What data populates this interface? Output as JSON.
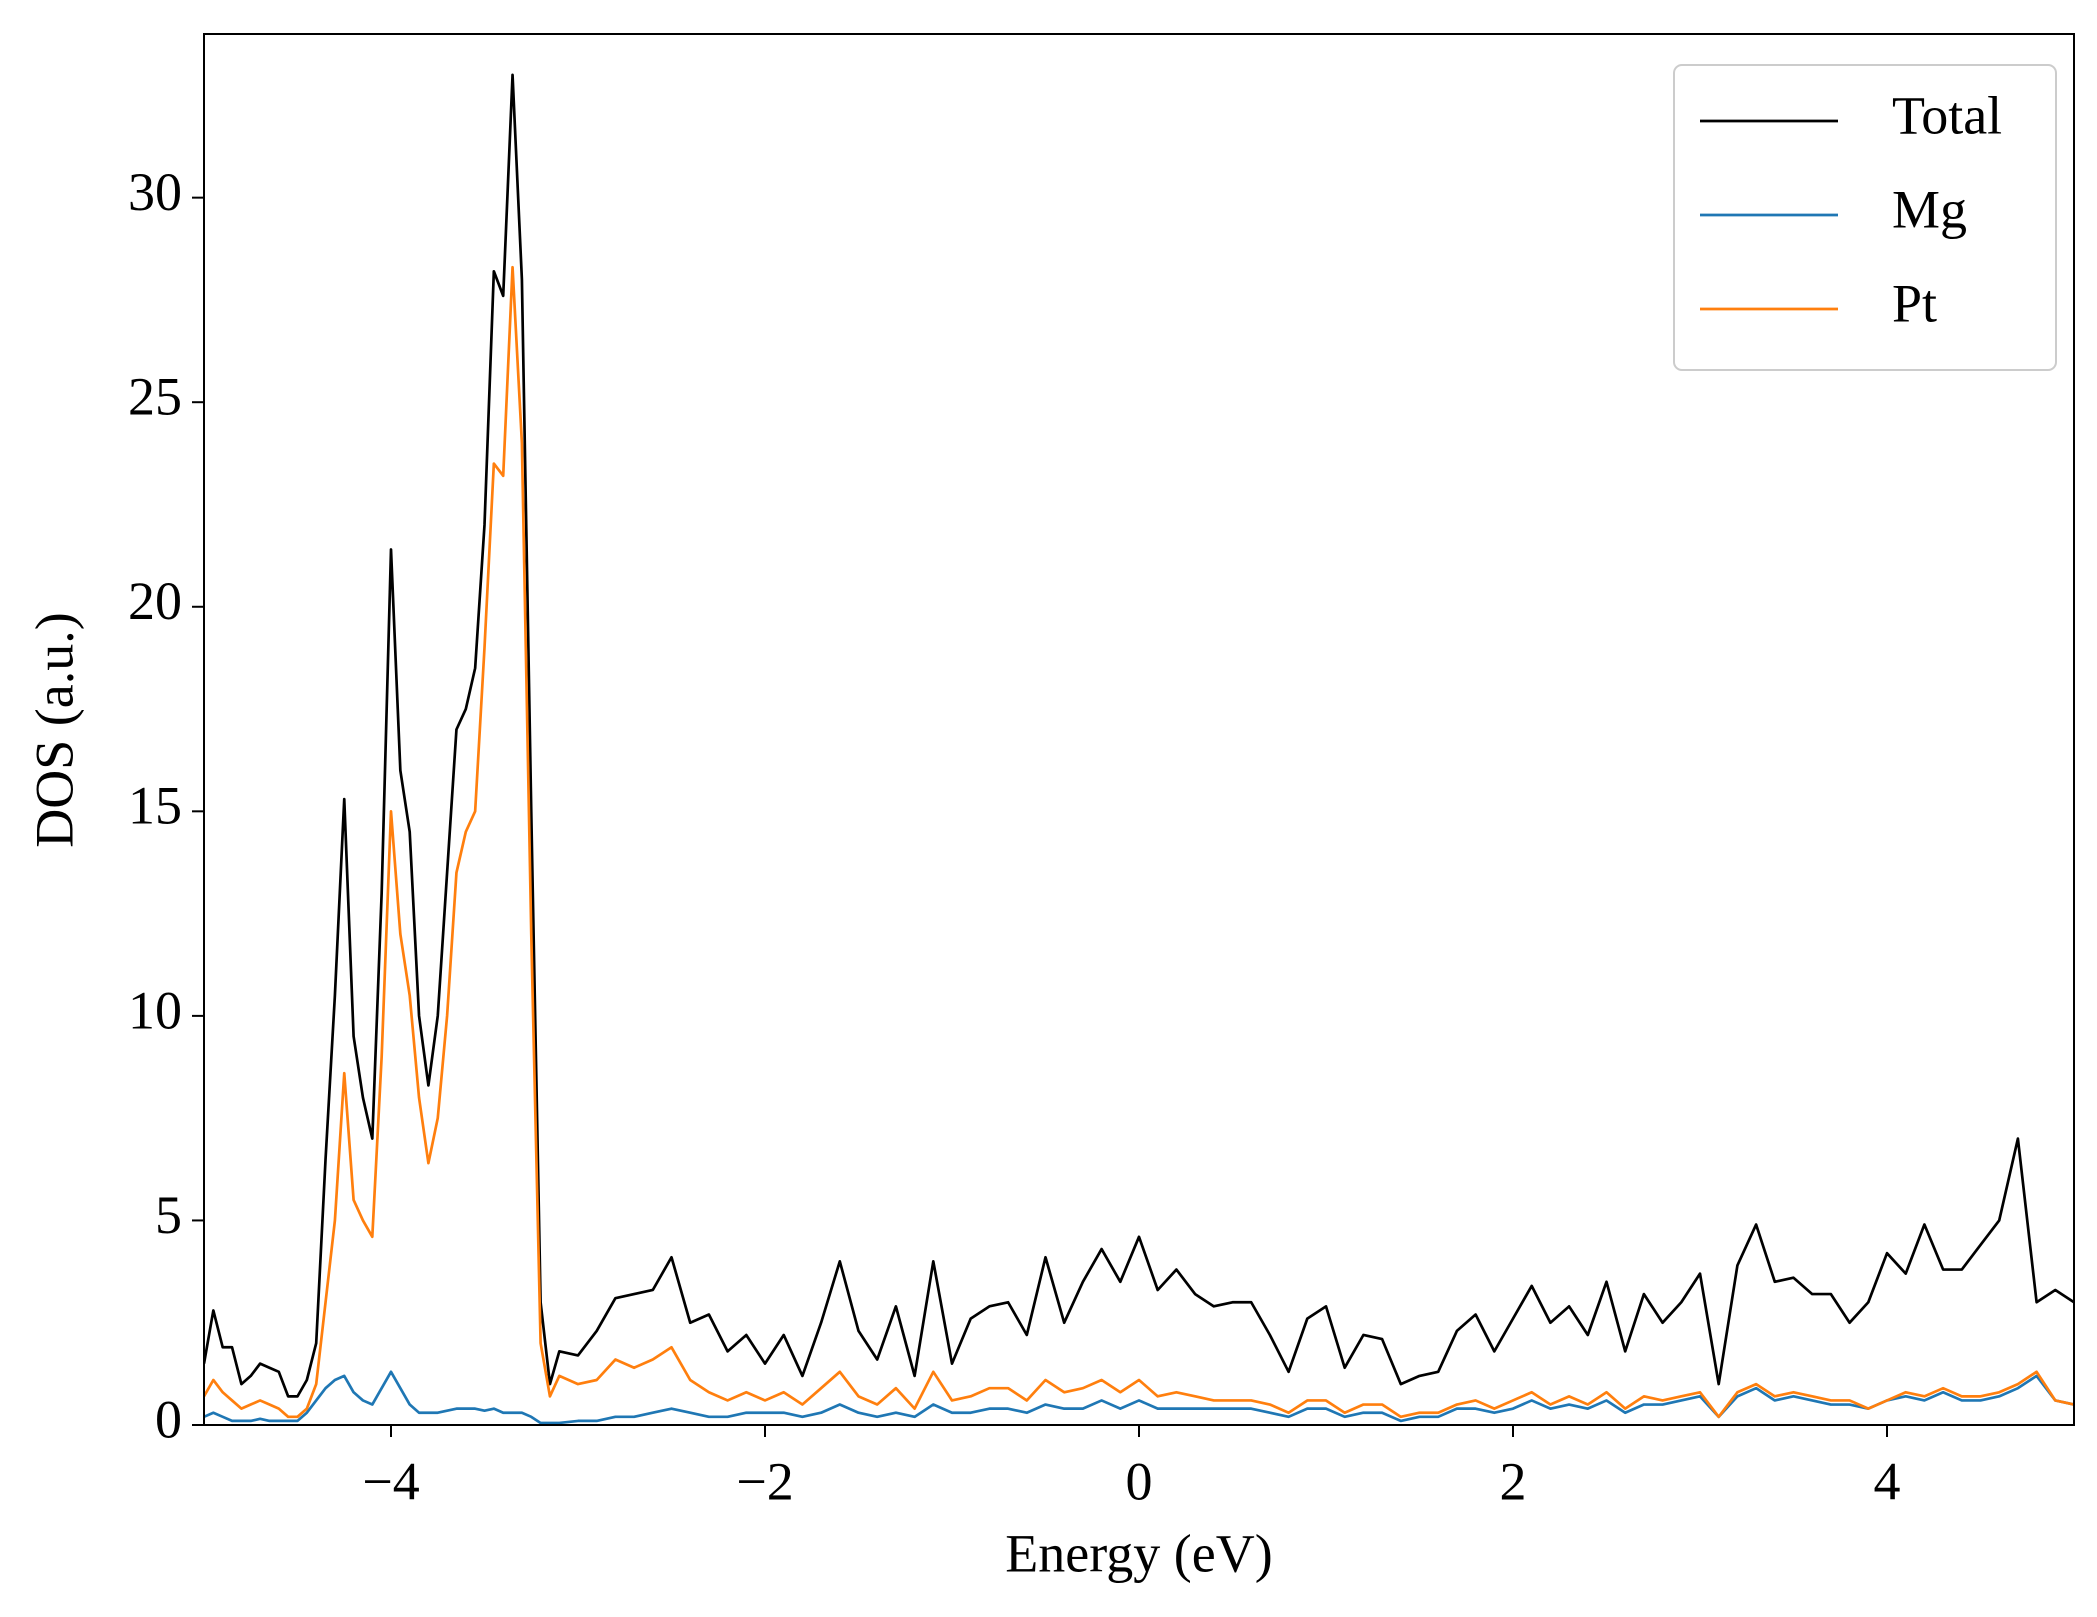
{
  "chart_data": {
    "type": "line",
    "xlabel": "Energy (eV)",
    "ylabel": "DOS (a.u.)",
    "x": [
      -5,
      -4.95,
      -4.9,
      -4.85,
      -4.8,
      -4.75,
      -4.7,
      -4.65,
      -4.6,
      -4.55,
      -4.5,
      -4.45,
      -4.4,
      -4.35,
      -4.3,
      -4.25,
      -4.2,
      -4.15,
      -4.1,
      -4.05,
      -4,
      -3.95,
      -3.9,
      -3.85,
      -3.8,
      -3.75,
      -3.7,
      -3.65,
      -3.6,
      -3.55,
      -3.5,
      -3.45,
      -3.4,
      -3.35,
      -3.3,
      -3.25,
      -3.2,
      -3.15,
      -3.1,
      -3,
      -2.9,
      -2.8,
      -2.7,
      -2.6,
      -2.5,
      -2.4,
      -2.3,
      -2.2,
      -2.1,
      -2,
      -1.9,
      -1.8,
      -1.7,
      -1.6,
      -1.5,
      -1.4,
      -1.3,
      -1.2,
      -1.1,
      -1,
      -0.9,
      -0.8,
      -0.7,
      -0.6,
      -0.5,
      -0.4,
      -0.3,
      -0.2,
      -0.1,
      0,
      0.1,
      0.2,
      0.3,
      0.4,
      0.5,
      0.6,
      0.7,
      0.8,
      0.9,
      1,
      1.1,
      1.2,
      1.3,
      1.4,
      1.5,
      1.6,
      1.7,
      1.8,
      1.9,
      2,
      2.1,
      2.2,
      2.3,
      2.4,
      2.5,
      2.6,
      2.7,
      2.8,
      2.9,
      3,
      3.1,
      3.2,
      3.3,
      3.4,
      3.5,
      3.6,
      3.7,
      3.8,
      3.9,
      4,
      4.1,
      4.2,
      4.3,
      4.4,
      4.5,
      4.6,
      4.7,
      4.8,
      4.9,
      5
    ],
    "series": [
      {
        "name": "Total",
        "color": "#000000",
        "values": [
          1.5,
          2.8,
          1.9,
          1.9,
          1.0,
          1.2,
          1.5,
          1.4,
          1.3,
          0.7,
          0.7,
          1.1,
          2.0,
          6.5,
          10.5,
          15.3,
          9.5,
          8.0,
          7.0,
          13.0,
          21.4,
          16.0,
          14.5,
          10.0,
          8.3,
          10.0,
          13.5,
          17.0,
          17.5,
          18.5,
          22.0,
          28.2,
          27.6,
          33.0,
          28.0,
          15.0,
          3.0,
          1.0,
          1.8,
          1.7,
          2.3,
          3.1,
          3.2,
          3.3,
          4.1,
          2.5,
          2.7,
          1.8,
          2.2,
          1.5,
          2.2,
          1.2,
          2.5,
          4.0,
          2.3,
          1.6,
          2.9,
          1.2,
          4.0,
          1.5,
          2.6,
          2.9,
          3.0,
          2.2,
          4.1,
          2.5,
          3.5,
          4.3,
          3.5,
          4.6,
          3.3,
          3.8,
          3.2,
          2.9,
          3.0,
          3.0,
          2.2,
          1.3,
          2.6,
          2.9,
          1.4,
          2.2,
          2.1,
          1.0,
          1.2,
          1.3,
          2.3,
          2.7,
          1.8,
          2.6,
          3.4,
          2.5,
          2.9,
          2.2,
          3.5,
          1.8,
          3.2,
          2.5,
          3.0,
          3.7,
          1.0,
          3.9,
          4.9,
          3.5,
          3.6,
          3.2,
          3.2,
          2.5,
          3.0,
          4.2,
          3.7,
          4.9,
          3.8,
          3.8,
          4.4,
          5.0,
          7.0,
          3.0,
          3.3,
          3.0
        ]
      },
      {
        "name": "Mg",
        "color": "#1f77b4",
        "values": [
          0.2,
          0.3,
          0.2,
          0.1,
          0.1,
          0.1,
          0.15,
          0.1,
          0.1,
          0.1,
          0.1,
          0.3,
          0.6,
          0.9,
          1.1,
          1.2,
          0.8,
          0.6,
          0.5,
          0.9,
          1.3,
          0.9,
          0.5,
          0.3,
          0.3,
          0.3,
          0.35,
          0.4,
          0.4,
          0.4,
          0.35,
          0.4,
          0.3,
          0.3,
          0.3,
          0.2,
          0.05,
          0.05,
          0.05,
          0.1,
          0.1,
          0.2,
          0.2,
          0.3,
          0.4,
          0.3,
          0.2,
          0.2,
          0.3,
          0.3,
          0.3,
          0.2,
          0.3,
          0.5,
          0.3,
          0.2,
          0.3,
          0.2,
          0.5,
          0.3,
          0.3,
          0.4,
          0.4,
          0.3,
          0.5,
          0.4,
          0.4,
          0.6,
          0.4,
          0.6,
          0.4,
          0.4,
          0.4,
          0.4,
          0.4,
          0.4,
          0.3,
          0.2,
          0.4,
          0.4,
          0.2,
          0.3,
          0.3,
          0.1,
          0.2,
          0.2,
          0.4,
          0.4,
          0.3,
          0.4,
          0.6,
          0.4,
          0.5,
          0.4,
          0.6,
          0.3,
          0.5,
          0.5,
          0.6,
          0.7,
          0.2,
          0.7,
          0.9,
          0.6,
          0.7,
          0.6,
          0.5,
          0.5,
          0.4,
          0.6,
          0.7,
          0.6,
          0.8,
          0.6,
          0.6,
          0.7,
          0.9,
          1.2,
          0.6,
          0.5
        ]
      },
      {
        "name": "Pt",
        "color": "#ff7f0e",
        "values": [
          0.7,
          1.1,
          0.8,
          0.6,
          0.4,
          0.5,
          0.6,
          0.5,
          0.4,
          0.2,
          0.2,
          0.4,
          1.0,
          3.0,
          5.0,
          8.6,
          5.5,
          5.0,
          4.6,
          9.0,
          15.0,
          12.0,
          10.5,
          8.0,
          6.4,
          7.5,
          10.0,
          13.5,
          14.5,
          15.0,
          19.0,
          23.5,
          23.2,
          28.3,
          24.0,
          12.0,
          2.0,
          0.7,
          1.2,
          1.0,
          1.1,
          1.6,
          1.4,
          1.6,
          1.9,
          1.1,
          0.8,
          0.6,
          0.8,
          0.6,
          0.8,
          0.5,
          0.9,
          1.3,
          0.7,
          0.5,
          0.9,
          0.4,
          1.3,
          0.6,
          0.7,
          0.9,
          0.9,
          0.6,
          1.1,
          0.8,
          0.9,
          1.1,
          0.8,
          1.1,
          0.7,
          0.8,
          0.7,
          0.6,
          0.6,
          0.6,
          0.5,
          0.3,
          0.6,
          0.6,
          0.3,
          0.5,
          0.5,
          0.2,
          0.3,
          0.3,
          0.5,
          0.6,
          0.4,
          0.6,
          0.8,
          0.5,
          0.7,
          0.5,
          0.8,
          0.4,
          0.7,
          0.6,
          0.7,
          0.8,
          0.2,
          0.8,
          1.0,
          0.7,
          0.8,
          0.7,
          0.6,
          0.6,
          0.4,
          0.6,
          0.8,
          0.7,
          0.9,
          0.7,
          0.7,
          0.8,
          1.0,
          1.3,
          0.6,
          0.5
        ]
      }
    ],
    "xlim": [
      -5,
      5
    ],
    "xticks": [
      {
        "value": -4,
        "label": "−4"
      },
      {
        "value": -2,
        "label": "−2"
      },
      0,
      2,
      4
    ],
    "ylim": [
      0,
      34
    ],
    "yticks": [
      0,
      5,
      10,
      15,
      20,
      25,
      30
    ],
    "grid": false,
    "legend": "upper right"
  }
}
